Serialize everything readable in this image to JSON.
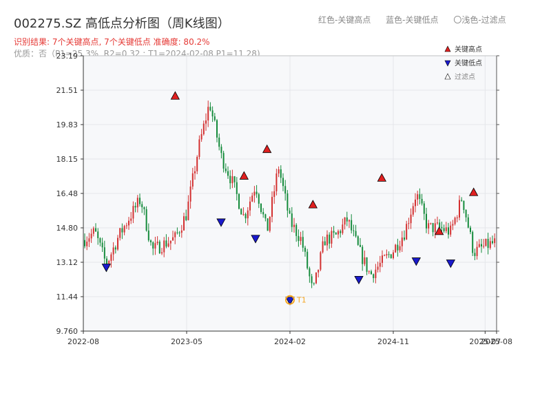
{
  "header": {
    "title": "002275.SZ 高低点分析图（周K线图）",
    "subtitle1": "识别结果: 7个关键高点, 7个关键低点  准确度: 80.2%",
    "subtitle2": "优质：否（P1=25.3%, R2=0.32 ; T1=2024-02-08,P1=11.28)",
    "top_legend": [
      "红色-关键高点",
      "蓝色-关键低点",
      "〇浅色-过滤点"
    ]
  },
  "colors": {
    "up": "#d32f2f",
    "down": "#138a3a",
    "high_marker": "#e02020",
    "low_marker": "#1a1acc",
    "t1_ring": "#f5a623",
    "plot_bg": "#f7f8fa"
  },
  "chart_data": {
    "type": "candlestick",
    "title": "002275.SZ 高低点分析图（周K线图）",
    "x_ticks": [
      "2022-08",
      "2023-05",
      "2024-02",
      "2024-11",
      "2025-07",
      "2025-08"
    ],
    "y_ticks": [
      "23.19",
      "21.51",
      "19.83",
      "18.15",
      "16.48",
      "14.80",
      "13.12",
      "11.44",
      "9.760"
    ],
    "ylim": [
      9.76,
      23.19
    ],
    "xlim": [
      "2022-08",
      "2025-08"
    ],
    "grid": true,
    "legend": {
      "placement": "top-right",
      "entries": [
        "关键高点",
        "关键低点",
        "过滤点"
      ]
    },
    "key_highs": [
      {
        "date": "2023-04",
        "value": 21.2
      },
      {
        "date": "2023-10",
        "value": 17.3
      },
      {
        "date": "2023-12",
        "value": 18.6
      },
      {
        "date": "2024-04",
        "value": 15.9
      },
      {
        "date": "2024-10",
        "value": 17.2
      },
      {
        "date": "2025-03",
        "value": 14.6
      },
      {
        "date": "2025-06",
        "value": 16.5
      }
    ],
    "key_lows": [
      {
        "date": "2022-10",
        "value": 12.9
      },
      {
        "date": "2023-08",
        "value": 15.1
      },
      {
        "date": "2023-11",
        "value": 14.3
      },
      {
        "date": "2024-02",
        "value": 11.28
      },
      {
        "date": "2024-08",
        "value": 12.3
      },
      {
        "date": "2025-01",
        "value": 13.2
      },
      {
        "date": "2025-04",
        "value": 13.1
      }
    ],
    "annotation": {
      "label": "T1",
      "date": "2024-02",
      "value": 11.28
    },
    "price_path": [
      {
        "date": "2022-08",
        "value": 14.2
      },
      {
        "date": "2022-09",
        "value": 14.6
      },
      {
        "date": "2022-10",
        "value": 13.0
      },
      {
        "date": "2022-11",
        "value": 14.3
      },
      {
        "date": "2022-12",
        "value": 15.3
      },
      {
        "date": "2023-01",
        "value": 16.2
      },
      {
        "date": "2023-02",
        "value": 13.7
      },
      {
        "date": "2023-03",
        "value": 14.0
      },
      {
        "date": "2023-04",
        "value": 14.3
      },
      {
        "date": "2023-05",
        "value": 15.5
      },
      {
        "date": "2023-06",
        "value": 18.6
      },
      {
        "date": "2023-07",
        "value": 20.9
      },
      {
        "date": "2023-08",
        "value": 18.3
      },
      {
        "date": "2023-09",
        "value": 17.0
      },
      {
        "date": "2023-10",
        "value": 15.3
      },
      {
        "date": "2023-11",
        "value": 16.9
      },
      {
        "date": "2023-12",
        "value": 14.6
      },
      {
        "date": "2024-01",
        "value": 17.8
      },
      {
        "date": "2024-02",
        "value": 15.1
      },
      {
        "date": "2024-03",
        "value": 14.2
      },
      {
        "date": "2024-04",
        "value": 11.6
      },
      {
        "date": "2024-05",
        "value": 14.2
      },
      {
        "date": "2024-06",
        "value": 14.4
      },
      {
        "date": "2024-07",
        "value": 15.2
      },
      {
        "date": "2024-08",
        "value": 13.7
      },
      {
        "date": "2024-09",
        "value": 12.5
      },
      {
        "date": "2024-10",
        "value": 13.1
      },
      {
        "date": "2024-11",
        "value": 13.7
      },
      {
        "date": "2024-12",
        "value": 14.6
      },
      {
        "date": "2025-01",
        "value": 16.5
      },
      {
        "date": "2025-02",
        "value": 14.8
      },
      {
        "date": "2025-03",
        "value": 14.8
      },
      {
        "date": "2025-04",
        "value": 14.6
      },
      {
        "date": "2025-05",
        "value": 16.3
      },
      {
        "date": "2025-06",
        "value": 13.6
      },
      {
        "date": "2025-07",
        "value": 13.9
      },
      {
        "date": "2025-08",
        "value": 14.1
      }
    ]
  }
}
